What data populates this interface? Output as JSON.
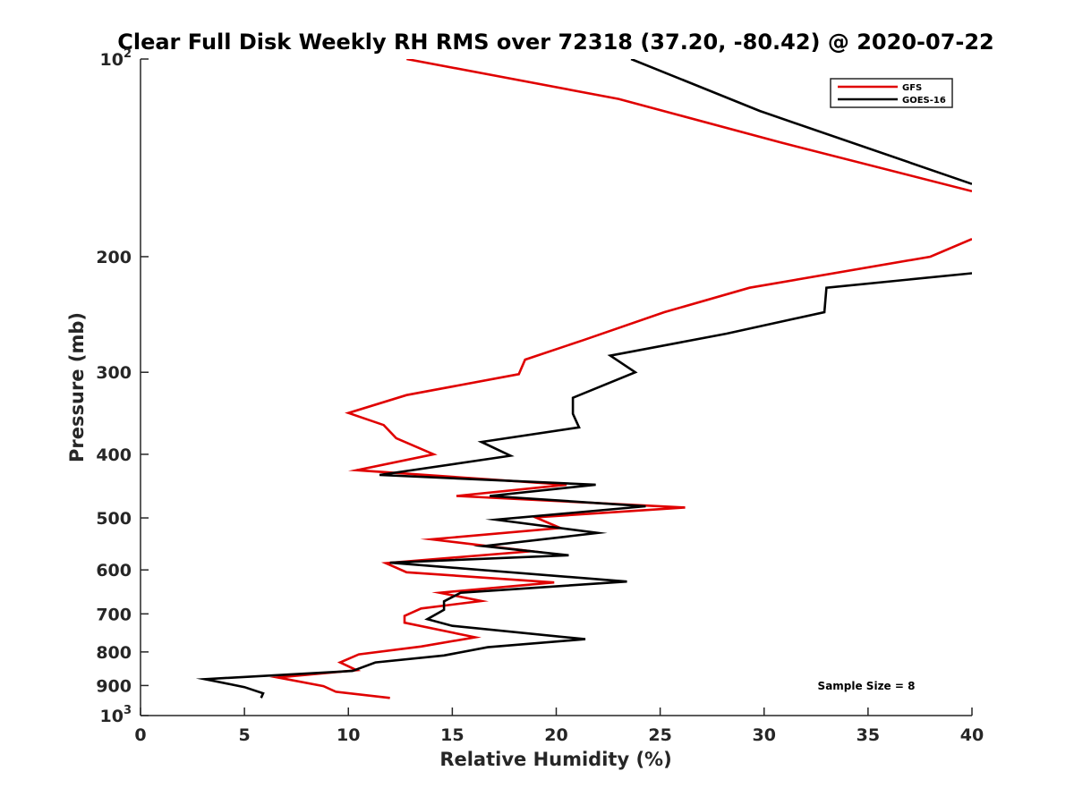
{
  "chart_data": {
    "type": "line",
    "title": "Clear Full Disk Weekly RH RMS over 72318 (37.20, -80.42) @ 2020-07-22",
    "xlabel": "Relative Humidity (%)",
    "ylabel": "Pressure (mb)",
    "xlim": [
      0,
      40
    ],
    "ylim": [
      100,
      1000
    ],
    "y_scale": "log",
    "y_reversed": true,
    "grid": false,
    "legend_placement": "top-right",
    "x_ticks": [
      "0",
      "5",
      "10",
      "15",
      "20",
      "25",
      "30",
      "35",
      "40"
    ],
    "y_ticks": [
      {
        "base": "10",
        "exp": "2",
        "value": 100
      },
      {
        "base": "200",
        "exp": "",
        "value": 200
      },
      {
        "base": "300",
        "exp": "",
        "value": 300
      },
      {
        "base": "400",
        "exp": "",
        "value": 400
      },
      {
        "base": "500",
        "exp": "",
        "value": 500
      },
      {
        "base": "600",
        "exp": "",
        "value": 600
      },
      {
        "base": "700",
        "exp": "",
        "value": 700
      },
      {
        "base": "800",
        "exp": "",
        "value": 800
      },
      {
        "base": "900",
        "exp": "",
        "value": 900
      },
      {
        "base": "10",
        "exp": "3",
        "value": 1000
      }
    ],
    "annotation": "Sample Size = 8",
    "series": [
      {
        "name": "GFS",
        "color": "#e00000",
        "points": [
          [
            12.8,
            100
          ],
          [
            23.0,
            115
          ],
          [
            30.8,
            134
          ],
          [
            40.0,
            159
          ],
          [
            null,
            null
          ],
          [
            40.0,
            188
          ],
          [
            38.0,
            200
          ],
          [
            29.3,
            223
          ],
          [
            25.2,
            243
          ],
          [
            21.3,
            268
          ],
          [
            18.5,
            287
          ],
          [
            18.2,
            302
          ],
          [
            12.8,
            325
          ],
          [
            10.0,
            346
          ],
          [
            11.7,
            361
          ],
          [
            12.3,
            378
          ],
          [
            14.1,
            400
          ],
          [
            10.4,
            423
          ],
          [
            20.5,
            445
          ],
          [
            15.2,
            463
          ],
          [
            26.2,
            482
          ],
          [
            19.0,
            499
          ],
          [
            20.2,
            518
          ],
          [
            14.0,
            539
          ],
          [
            18.8,
            562
          ],
          [
            11.8,
            586
          ],
          [
            12.8,
            605
          ],
          [
            19.9,
            627
          ],
          [
            14.4,
            650
          ],
          [
            16.4,
            669
          ],
          [
            13.5,
            687
          ],
          [
            12.7,
            705
          ],
          [
            12.7,
            722
          ],
          [
            16.1,
            760
          ],
          [
            13.5,
            785
          ],
          [
            10.5,
            807
          ],
          [
            9.6,
            830
          ],
          [
            10.4,
            853
          ],
          [
            6.6,
            875
          ],
          [
            8.8,
            902
          ],
          [
            9.4,
            920
          ],
          [
            12.0,
            940
          ]
        ]
      },
      {
        "name": "GOES-16",
        "color": "#000000",
        "points": [
          [
            23.6,
            100
          ],
          [
            29.8,
            120
          ],
          [
            40.0,
            155
          ],
          [
            null,
            null
          ],
          [
            40.0,
            212
          ],
          [
            33.0,
            223
          ],
          [
            32.9,
            243
          ],
          [
            28.2,
            262
          ],
          [
            22.6,
            283
          ],
          [
            23.8,
            300
          ],
          [
            20.8,
            328
          ],
          [
            20.8,
            347
          ],
          [
            21.1,
            364
          ],
          [
            16.4,
            383
          ],
          [
            17.8,
            402
          ],
          [
            11.5,
            430
          ],
          [
            21.9,
            445
          ],
          [
            16.8,
            463
          ],
          [
            24.3,
            480
          ],
          [
            17.1,
            503
          ],
          [
            22.0,
            527
          ],
          [
            16.5,
            552
          ],
          [
            20.6,
            570
          ],
          [
            12.0,
            585
          ],
          [
            23.4,
            625
          ],
          [
            15.4,
            650
          ],
          [
            14.6,
            670
          ],
          [
            14.6,
            690
          ],
          [
            13.8,
            713
          ],
          [
            15.0,
            730
          ],
          [
            21.4,
            765
          ],
          [
            16.7,
            787
          ],
          [
            14.6,
            810
          ],
          [
            11.3,
            830
          ],
          [
            10.2,
            855
          ],
          [
            3.1,
            880
          ],
          [
            5.0,
            905
          ],
          [
            5.9,
            925
          ],
          [
            5.8,
            940
          ]
        ]
      }
    ]
  }
}
